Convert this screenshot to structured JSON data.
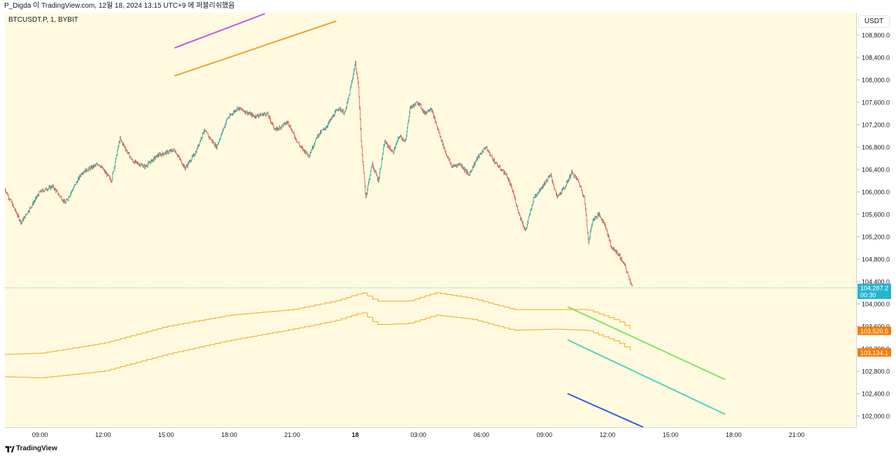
{
  "header": {
    "title": "P_Digda 이 TradingView.com, 12월 18, 2024 13:15 UTC+9 에 퍼블리쉬했음"
  },
  "symbol": "BTCUSDT.P, 1, BYBIT",
  "currency": "USDT",
  "footer": {
    "brand": "TradingView"
  },
  "colors": {
    "background": "#fffadf",
    "candle_up": "#26a69a",
    "candle_down": "#ef5350",
    "band": "#f5a623",
    "current_price_label": "#26b5cf",
    "band_label": "#f57c00"
  },
  "chart_data": {
    "type": "candlestick",
    "title": "",
    "xlabel": "",
    "ylabel": "",
    "ylim": [
      101800,
      109200
    ],
    "y_ticks": [
      102000,
      102400,
      102800,
      103200,
      103600,
      104000,
      104400,
      104800,
      105200,
      105600,
      106000,
      106400,
      106800,
      107200,
      107600,
      108000,
      108400,
      108800
    ],
    "y_tick_labels": [
      "102,000.0",
      "102,400.0",
      "102,800.0",
      "103,200.0",
      "103,600.0",
      "104,000.0",
      "104,400.0",
      "104,800.0",
      "105,200.0",
      "105,600.0",
      "106,000.0",
      "106,400.0",
      "106,800.0",
      "107,200.0",
      "107,600.0",
      "108,000.0",
      "108,400.0",
      "108,800.0"
    ],
    "x_range_hours": [
      -16.67,
      23.83
    ],
    "x_ticks": [
      {
        "t": -15,
        "label": "09:00"
      },
      {
        "t": -12,
        "label": "12:00"
      },
      {
        "t": -9,
        "label": "15:00"
      },
      {
        "t": -6,
        "label": "18:00"
      },
      {
        "t": -3,
        "label": "21:00"
      },
      {
        "t": 0,
        "label": "18"
      },
      {
        "t": 3,
        "label": "03:00"
      },
      {
        "t": 6,
        "label": "06:00"
      },
      {
        "t": 9,
        "label": "09:00"
      },
      {
        "t": 12,
        "label": "12:00"
      },
      {
        "t": 15,
        "label": "15:00"
      },
      {
        "t": 18,
        "label": "18:00"
      },
      {
        "t": 21,
        "label": "21:00"
      }
    ],
    "price_path": [
      [
        -16.67,
        106050
      ],
      [
        -15.9,
        105450
      ],
      [
        -15.0,
        106000
      ],
      [
        -14.4,
        106100
      ],
      [
        -13.8,
        105800
      ],
      [
        -13.0,
        106350
      ],
      [
        -12.2,
        106500
      ],
      [
        -11.6,
        106200
      ],
      [
        -11.2,
        106950
      ],
      [
        -10.6,
        106550
      ],
      [
        -10.0,
        106450
      ],
      [
        -9.4,
        106650
      ],
      [
        -8.6,
        106750
      ],
      [
        -8.1,
        106420
      ],
      [
        -7.6,
        106700
      ],
      [
        -7.2,
        107100
      ],
      [
        -6.6,
        106800
      ],
      [
        -6.1,
        107300
      ],
      [
        -5.6,
        107500
      ],
      [
        -4.8,
        107350
      ],
      [
        -4.2,
        107400
      ],
      [
        -3.8,
        107100
      ],
      [
        -3.2,
        107250
      ],
      [
        -2.9,
        107000
      ],
      [
        -2.6,
        106800
      ],
      [
        -2.2,
        106650
      ],
      [
        -1.8,
        107000
      ],
      [
        -1.4,
        107150
      ],
      [
        -0.8,
        107500
      ],
      [
        -0.5,
        107400
      ],
      [
        -0.3,
        107700
      ],
      [
        0.0,
        108300
      ],
      [
        0.15,
        107900
      ],
      [
        0.3,
        106800
      ],
      [
        0.5,
        105900
      ],
      [
        0.8,
        106500
      ],
      [
        1.1,
        106200
      ],
      [
        1.4,
        106900
      ],
      [
        1.8,
        106700
      ],
      [
        2.1,
        107000
      ],
      [
        2.4,
        106900
      ],
      [
        2.6,
        107500
      ],
      [
        3.0,
        107600
      ],
      [
        3.3,
        107400
      ],
      [
        3.6,
        107500
      ],
      [
        3.9,
        107150
      ],
      [
        4.3,
        106700
      ],
      [
        4.6,
        106450
      ],
      [
        5.0,
        106500
      ],
      [
        5.4,
        106300
      ],
      [
        5.8,
        106600
      ],
      [
        6.2,
        106800
      ],
      [
        6.7,
        106500
      ],
      [
        7.2,
        106300
      ],
      [
        7.5,
        106000
      ],
      [
        7.8,
        105600
      ],
      [
        8.1,
        105300
      ],
      [
        8.5,
        105900
      ],
      [
        8.9,
        106100
      ],
      [
        9.3,
        106300
      ],
      [
        9.6,
        105900
      ],
      [
        10.0,
        106100
      ],
      [
        10.3,
        106350
      ],
      [
        10.6,
        106200
      ],
      [
        10.9,
        105900
      ],
      [
        11.1,
        105100
      ],
      [
        11.3,
        105500
      ],
      [
        11.6,
        105600
      ],
      [
        11.9,
        105400
      ],
      [
        12.2,
        105000
      ],
      [
        12.5,
        104900
      ],
      [
        12.8,
        104700
      ],
      [
        13.0,
        104500
      ],
      [
        13.2,
        104290
      ]
    ],
    "current_price": {
      "value": 104287.2,
      "label": "104,287.2",
      "countdown": "00:30"
    },
    "series": [
      {
        "name": "",
        "label": "103,520.5",
        "points": [
          [
            -16.67,
            103100
          ],
          [
            -15.0,
            103120
          ],
          [
            -12.0,
            103300
          ],
          [
            -9.0,
            103600
          ],
          [
            -6.0,
            103800
          ],
          [
            -3.0,
            103900
          ],
          [
            -1.0,
            104050
          ],
          [
            0.3,
            104200
          ],
          [
            1.0,
            104050
          ],
          [
            2.5,
            104050
          ],
          [
            3.8,
            104200
          ],
          [
            5.5,
            104100
          ],
          [
            7.5,
            103900
          ],
          [
            9.5,
            103900
          ],
          [
            11.0,
            103900
          ],
          [
            12.5,
            103700
          ],
          [
            13.2,
            103520
          ]
        ]
      },
      {
        "name": "",
        "label": "103,134.1",
        "points": [
          [
            -16.67,
            102700
          ],
          [
            -15.0,
            102680
          ],
          [
            -12.0,
            102800
          ],
          [
            -9.0,
            103100
          ],
          [
            -6.0,
            103350
          ],
          [
            -3.0,
            103550
          ],
          [
            -1.0,
            103700
          ],
          [
            0.3,
            103850
          ],
          [
            1.0,
            103630
          ],
          [
            2.5,
            103650
          ],
          [
            3.8,
            103800
          ],
          [
            5.5,
            103730
          ],
          [
            7.5,
            103530
          ],
          [
            9.5,
            103550
          ],
          [
            11.0,
            103530
          ],
          [
            12.5,
            103320
          ],
          [
            13.2,
            103134
          ]
        ]
      }
    ],
    "trend_lines": [
      {
        "color": "#c35be8",
        "from": [
          -8.6,
          108570
        ],
        "to": [
          -4.3,
          109180
        ]
      },
      {
        "color": "#f5a030",
        "from": [
          -8.6,
          108070
        ],
        "to": [
          -0.9,
          109050
        ]
      },
      {
        "color": "#7ae866",
        "from": [
          10.1,
          103950
        ],
        "to": [
          17.6,
          102650
        ]
      },
      {
        "color": "#4ed6c0",
        "from": [
          10.1,
          103360
        ],
        "to": [
          17.6,
          102030
        ]
      },
      {
        "color": "#2f57e8",
        "from": [
          10.1,
          102400
        ],
        "to": [
          13.7,
          101800
        ]
      }
    ]
  }
}
